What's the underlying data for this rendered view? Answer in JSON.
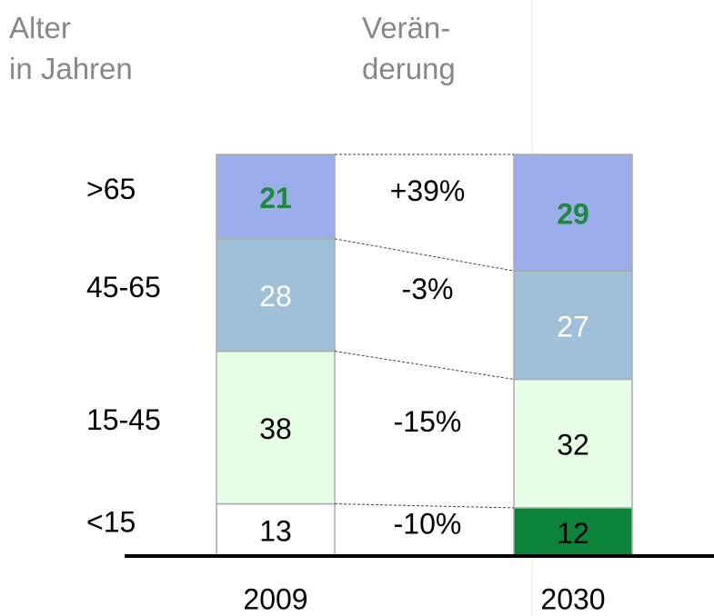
{
  "chart_data": {
    "type": "stacked-bar",
    "row_header": [
      "Alter",
      "in Jahren"
    ],
    "change_header": [
      "Verän-",
      "derung"
    ],
    "categories": [
      "2009",
      "2030"
    ],
    "series": [
      {
        "name": "<15",
        "values": [
          13,
          12
        ],
        "colors": [
          "#ffffff",
          "#0b843a"
        ],
        "label_color": "#000000",
        "change": "-10%"
      },
      {
        "name": "15-45",
        "values": [
          38,
          32
        ],
        "colors": [
          "#e6ffe6",
          "#e6ffe6"
        ],
        "label_color": "#000000",
        "change": "-15%"
      },
      {
        "name": "45-65",
        "values": [
          28,
          27
        ],
        "colors": [
          "#a0bfd8",
          "#a0bfd8"
        ],
        "label_color": "#ffffff",
        "change": "-3%"
      },
      {
        "name": ">65",
        "values": [
          21,
          29
        ],
        "colors": [
          "#9badea",
          "#9badea"
        ],
        "label_color": "#1e8a3c",
        "label_bold": true,
        "change": "+39%"
      }
    ]
  }
}
